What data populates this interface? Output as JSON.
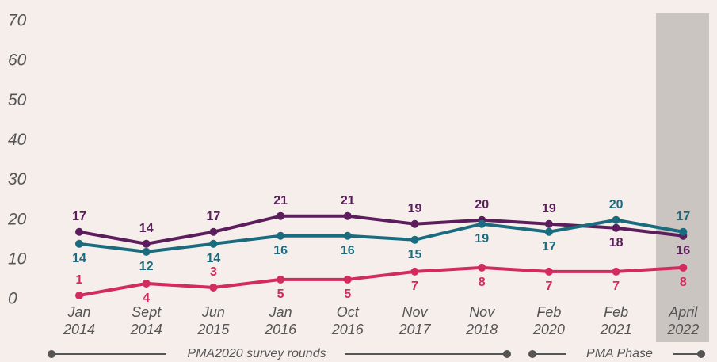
{
  "chart_data": {
    "type": "line",
    "categories": [
      [
        "Jan",
        "2014"
      ],
      [
        "Sept",
        "2014"
      ],
      [
        "Jun",
        "2015"
      ],
      [
        "Jan",
        "2016"
      ],
      [
        "Oct",
        "2016"
      ],
      [
        "Nov",
        "2017"
      ],
      [
        "Nov",
        "2018"
      ],
      [
        "Feb",
        "2020"
      ],
      [
        "Feb",
        "2021"
      ],
      [
        "April",
        "2022"
      ]
    ],
    "series": [
      {
        "color": "#5b1d5c",
        "values": [
          17,
          14,
          17,
          21,
          21,
          19,
          20,
          19,
          18,
          16
        ]
      },
      {
        "color": "#1b6b7e",
        "values": [
          14,
          12,
          14,
          16,
          16,
          15,
          19,
          17,
          20,
          17
        ]
      },
      {
        "color": "#d22b5f",
        "values": [
          1,
          4,
          3,
          5,
          5,
          7,
          8,
          7,
          7,
          8
        ]
      }
    ],
    "ylim": [
      0,
      70
    ],
    "yticks": [
      0,
      10,
      20,
      30,
      40,
      50,
      60,
      70
    ],
    "grid": false,
    "annotations": [
      "PMA2020 survey rounds",
      "PMA Phase"
    ]
  }
}
